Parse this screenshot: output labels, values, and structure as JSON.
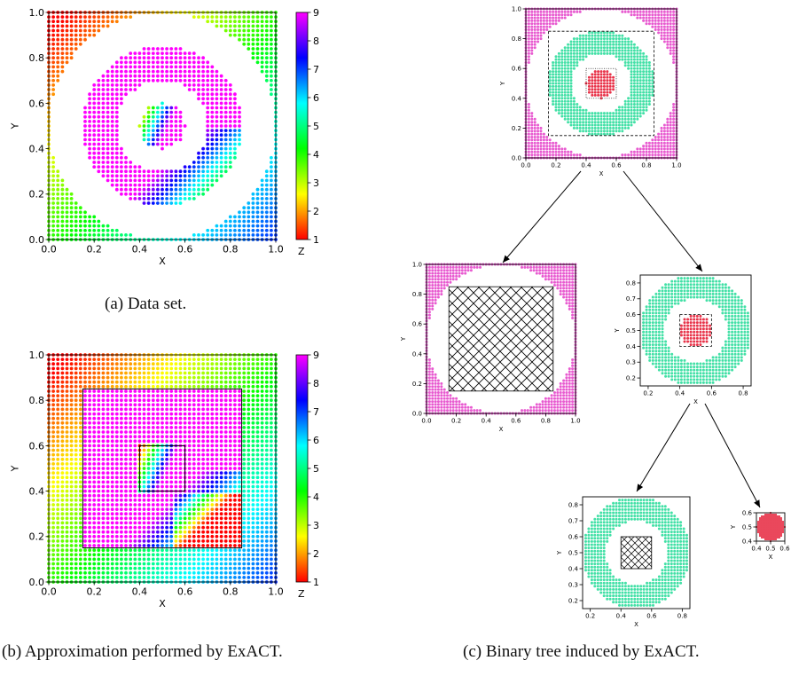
{
  "captions": {
    "a": "(a) Data set.",
    "b": "(b) Approximation performed by ExACT.",
    "c": "(c) Binary tree induced by ExACT."
  },
  "colors": {
    "outer_region": "#e85ad0",
    "ring": "#42e0a6",
    "inner_disc": "#e8344a",
    "hatch": "#000000",
    "colormap_stops": [
      "#ff0000",
      "#ffff00",
      "#00ff00",
      "#00ffff",
      "#0000ff",
      "#ff00ff"
    ]
  },
  "chart_data": [
    {
      "id": "a",
      "type": "scatter",
      "title": "",
      "xlabel": "X",
      "ylabel": "Y",
      "colorbar_label": "Z",
      "xlim": [
        0.0,
        1.0
      ],
      "ylim": [
        0.0,
        1.0
      ],
      "xticks": [
        "0.0",
        "0.2",
        "0.4",
        "0.6",
        "0.8",
        "1.0"
      ],
      "yticks": [
        "0.0",
        "0.2",
        "0.4",
        "0.6",
        "0.8",
        "1.0"
      ],
      "colorbar_ticks": [
        "1",
        "2",
        "3",
        "4",
        "5",
        "6",
        "7",
        "8",
        "9"
      ],
      "clim": [
        1,
        9
      ],
      "grid_step": 0.02,
      "regions": [
        {
          "shape": "disc",
          "center": [
            0.5,
            0.5
          ],
          "r_max": 0.1,
          "value": "smooth gradient"
        },
        {
          "shape": "ring",
          "center": [
            0.5,
            0.5
          ],
          "r_min": 0.2,
          "r_max": 0.35,
          "value": "9 with gradient in lower right"
        },
        {
          "shape": "outside",
          "center": [
            0.5,
            0.5
          ],
          "r_min": 0.5,
          "value": "smooth gradient"
        }
      ]
    },
    {
      "id": "b",
      "type": "scatter",
      "title": "",
      "xlabel": "X",
      "ylabel": "Y",
      "colorbar_label": "Z",
      "xlim": [
        0.0,
        1.0
      ],
      "ylim": [
        0.0,
        1.0
      ],
      "xticks": [
        "0.0",
        "0.2",
        "0.4",
        "0.6",
        "0.8",
        "1.0"
      ],
      "yticks": [
        "0.0",
        "0.2",
        "0.4",
        "0.6",
        "0.8",
        "1.0"
      ],
      "colorbar_ticks": [
        "1",
        "2",
        "3",
        "4",
        "5",
        "6",
        "7",
        "8",
        "9"
      ],
      "clim": [
        1,
        9
      ],
      "grid_step": 0.02,
      "boxes": [
        {
          "x": [
            0.15,
            0.85
          ],
          "y": [
            0.15,
            0.85
          ]
        },
        {
          "x": [
            0.4,
            0.6
          ],
          "y": [
            0.4,
            0.6
          ]
        }
      ]
    },
    {
      "id": "c",
      "type": "tree",
      "nodes": [
        {
          "id": "root",
          "xlabel": "X",
          "ylabel": "Y",
          "xlim": [
            0.0,
            1.0
          ],
          "ylim": [
            0.0,
            1.0
          ],
          "xticks": [
            "0.0",
            "0.2",
            "0.4",
            "0.6",
            "0.8",
            "1.0"
          ],
          "yticks": [
            "0.0",
            "0.2",
            "0.4",
            "0.6",
            "0.8",
            "1.0"
          ],
          "regions": [
            "outside",
            "ring",
            "disc"
          ]
        },
        {
          "id": "left",
          "xlabel": "X",
          "ylabel": "Y",
          "xlim": [
            0.0,
            1.0
          ],
          "ylim": [
            0.0,
            1.0
          ],
          "xticks": [
            "0.0",
            "0.2",
            "0.4",
            "0.6",
            "0.8",
            "1.0"
          ],
          "yticks": [
            "0.0",
            "0.2",
            "0.4",
            "0.6",
            "0.8",
            "1.0"
          ],
          "regions": [
            "outside"
          ],
          "hatched_box": {
            "x": [
              0.15,
              0.85
            ],
            "y": [
              0.15,
              0.85
            ]
          }
        },
        {
          "id": "right",
          "xlabel": "X",
          "ylabel": "Y",
          "xlim": [
            0.15,
            0.85
          ],
          "ylim": [
            0.15,
            0.85
          ],
          "xticks": [
            "0.2",
            "0.4",
            "0.6",
            "0.8"
          ],
          "yticks": [
            "0.2",
            "0.3",
            "0.4",
            "0.5",
            "0.6",
            "0.7",
            "0.8"
          ],
          "regions": [
            "ring",
            "disc"
          ]
        },
        {
          "id": "right-left",
          "xlabel": "X",
          "ylabel": "Y",
          "xlim": [
            0.15,
            0.85
          ],
          "ylim": [
            0.15,
            0.85
          ],
          "xticks": [
            "0.2",
            "0.4",
            "0.6",
            "0.8"
          ],
          "yticks": [
            "0.2",
            "0.3",
            "0.4",
            "0.5",
            "0.6",
            "0.7",
            "0.8"
          ],
          "regions": [
            "ring"
          ],
          "hatched_box": {
            "x": [
              0.4,
              0.6
            ],
            "y": [
              0.4,
              0.6
            ]
          }
        },
        {
          "id": "right-right",
          "xlabel": "X",
          "ylabel": "Y",
          "xlim": [
            0.4,
            0.6
          ],
          "ylim": [
            0.4,
            0.6
          ],
          "xticks": [
            "0.4",
            "0.5",
            "0.6"
          ],
          "yticks": [
            "0.4",
            "0.5",
            "0.6"
          ],
          "regions": [
            "disc"
          ]
        }
      ],
      "edges": [
        [
          "root",
          "left"
        ],
        [
          "root",
          "right"
        ],
        [
          "right",
          "right-left"
        ],
        [
          "right",
          "right-right"
        ]
      ]
    }
  ]
}
